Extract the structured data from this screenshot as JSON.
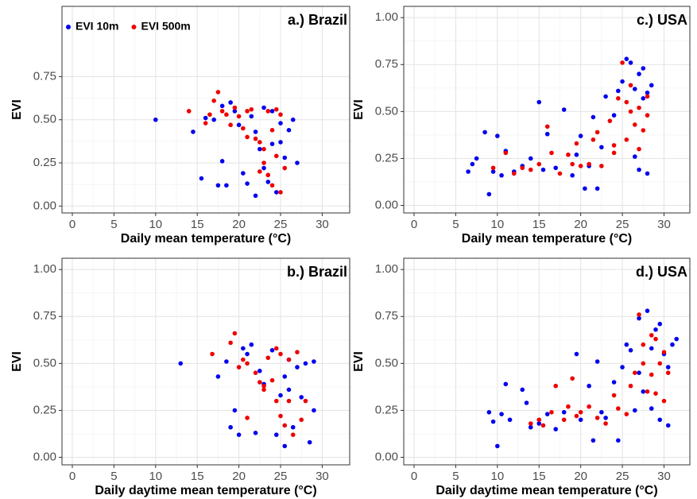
{
  "chart_data": [
    {
      "type": "scatter",
      "title": "a.) Brazil",
      "x_label": "Daily mean temperature (°C)",
      "y_label": "EVI",
      "legend": "top-left",
      "grid": true,
      "xlim": [
        -1.24,
        33.3
      ],
      "ylim": [
        -0.04,
        1.157
      ],
      "xticks": [
        0,
        5,
        10,
        15,
        20,
        25,
        30
      ],
      "yticks": [
        {
          "value": 0,
          "label": "0.00"
        },
        {
          "value": 0.25,
          "label": "0.25"
        },
        {
          "value": 0.5,
          "label": "0.50"
        },
        {
          "value": 0.75,
          "label": "0.75"
        }
      ],
      "series": [
        {
          "name": "EVI 10m",
          "color": "#0000ee",
          "x": [
            10,
            14.5,
            15.5,
            16,
            17,
            17.5,
            18,
            18,
            18.5,
            19,
            19.5,
            20,
            20.5,
            21,
            21.5,
            22,
            22.5,
            23,
            23,
            23.5,
            24,
            24,
            24.5,
            25,
            25.5,
            26,
            26.5,
            27,
            25,
            22
          ],
          "values": [
            0.5,
            0.43,
            0.16,
            0.51,
            0.5,
            0.12,
            0.58,
            0.26,
            0.12,
            0.6,
            0.55,
            0.47,
            0.19,
            0.13,
            0.52,
            0.06,
            0.33,
            0.57,
            0.22,
            0.14,
            0.55,
            0.36,
            0.08,
            0.48,
            0.28,
            0.44,
            0.5,
            0.25,
            0.37,
            0.43
          ]
        },
        {
          "name": "EVI 500m",
          "color": "#ee0000",
          "x": [
            14,
            16,
            16.5,
            17,
            17.5,
            18,
            18.5,
            19,
            19.5,
            20,
            20.5,
            21,
            21.5,
            22,
            22.5,
            23,
            23,
            23.5,
            23.5,
            24,
            24,
            24.5,
            24.5,
            25,
            25,
            25.5,
            21,
            22.5
          ],
          "values": [
            0.55,
            0.48,
            0.53,
            0.61,
            0.66,
            0.55,
            0.53,
            0.47,
            0.57,
            0.52,
            0.45,
            0.4,
            0.56,
            0.39,
            0.37,
            0.33,
            0.25,
            0.18,
            0.55,
            0.44,
            0.12,
            0.29,
            0.56,
            0.08,
            0.53,
            0.22,
            0.55,
            0.2
          ]
        }
      ]
    },
    {
      "type": "scatter",
      "title": "c.) USA",
      "x_label": "Daily mean temperature (°C)",
      "y_label": "EVI",
      "grid": true,
      "xlim": [
        -1.24,
        33.1
      ],
      "ylim": [
        -0.04,
        1.06
      ],
      "xticks": [
        0,
        5,
        10,
        15,
        20,
        25,
        30
      ],
      "yticks": [
        {
          "value": 0,
          "label": "0.00"
        },
        {
          "value": 0.25,
          "label": "0.25"
        },
        {
          "value": 0.5,
          "label": "0.50"
        },
        {
          "value": 0.75,
          "label": "0.75"
        },
        {
          "value": 1,
          "label": "1.00"
        }
      ],
      "series": [
        {
          "color": "#0000ee",
          "x": [
            6.5,
            7,
            7.5,
            8.5,
            9,
            9.5,
            10,
            10.5,
            11,
            12,
            13,
            14,
            15,
            15.5,
            16,
            17,
            18,
            19,
            19.5,
            20,
            20.5,
            21,
            21.5,
            22,
            22.5,
            23,
            24,
            24.5,
            25,
            25.5,
            26,
            26.5,
            26.5,
            27,
            27,
            27.5,
            27.5,
            28,
            28,
            28.5
          ],
          "values": [
            0.18,
            0.22,
            0.25,
            0.39,
            0.06,
            0.18,
            0.37,
            0.16,
            0.29,
            0.18,
            0.21,
            0.25,
            0.55,
            0.19,
            0.38,
            0.2,
            0.51,
            0.16,
            0.27,
            0.37,
            0.09,
            0.21,
            0.47,
            0.09,
            0.31,
            0.58,
            0.48,
            0.61,
            0.66,
            0.78,
            0.76,
            0.62,
            0.26,
            0.7,
            0.19,
            0.73,
            0.57,
            0.6,
            0.17,
            0.64
          ]
        },
        {
          "color": "#ee0000",
          "x": [
            9.5,
            11,
            12,
            13,
            14,
            15,
            16,
            16.5,
            17.5,
            18.5,
            19,
            19.5,
            20,
            21,
            21.5,
            22,
            22.5,
            23.5,
            24,
            24.5,
            25,
            25.5,
            26,
            26,
            26.5,
            27,
            27,
            27.5,
            28,
            28,
            25.5,
            24
          ],
          "values": [
            0.2,
            0.28,
            0.17,
            0.2,
            0.19,
            0.22,
            0.42,
            0.28,
            0.17,
            0.27,
            0.22,
            0.33,
            0.21,
            0.22,
            0.35,
            0.39,
            0.21,
            0.45,
            0.32,
            0.57,
            0.76,
            0.35,
            0.5,
            0.64,
            0.43,
            0.3,
            0.52,
            0.4,
            0.48,
            0.58,
            0.55,
            0.28
          ]
        }
      ]
    },
    {
      "type": "scatter",
      "title": "b.) Brazil",
      "x_label": "Daily daytime mean temperature (°C)",
      "y_label": "EVI",
      "grid": true,
      "xlim": [
        -1.24,
        33.3
      ],
      "ylim": [
        -0.04,
        1.06
      ],
      "xticks": [
        0,
        5,
        10,
        15,
        20,
        25,
        30
      ],
      "yticks": [
        {
          "value": 0,
          "label": "0.00"
        },
        {
          "value": 0.25,
          "label": "0.25"
        },
        {
          "value": 0.5,
          "label": "0.50"
        },
        {
          "value": 0.75,
          "label": "0.75"
        },
        {
          "value": 1,
          "label": "1.00"
        }
      ],
      "series": [
        {
          "color": "#0000ee",
          "x": [
            13,
            17.5,
            18.5,
            19,
            19.5,
            20,
            20.5,
            21,
            21.5,
            22,
            22.5,
            23,
            24,
            24.5,
            25,
            25.5,
            25.5,
            26,
            26.5,
            27,
            27.5,
            28,
            28.5,
            29,
            29,
            26
          ],
          "values": [
            0.5,
            0.43,
            0.51,
            0.16,
            0.25,
            0.12,
            0.58,
            0.55,
            0.6,
            0.13,
            0.46,
            0.39,
            0.57,
            0.12,
            0.33,
            0.06,
            0.43,
            0.52,
            0.16,
            0.48,
            0.32,
            0.5,
            0.08,
            0.25,
            0.51,
            0.36
          ]
        },
        {
          "color": "#ee0000",
          "x": [
            16.8,
            19,
            19.5,
            20,
            20.5,
            21,
            21,
            22,
            22.5,
            23,
            23.5,
            24,
            24.5,
            25,
            25,
            25.5,
            26,
            26,
            26.5,
            27,
            27.5,
            28,
            24.5,
            23
          ],
          "values": [
            0.55,
            0.61,
            0.66,
            0.48,
            0.52,
            0.21,
            0.5,
            0.45,
            0.4,
            0.38,
            0.53,
            0.41,
            0.3,
            0.22,
            0.55,
            0.17,
            0.3,
            0.52,
            0.12,
            0.56,
            0.2,
            0.3,
            0.58,
            0.36
          ]
        }
      ]
    },
    {
      "type": "scatter",
      "title": "d.) USA",
      "x_label": "Daily daytime mean temperature (°C)",
      "y_label": "EVI",
      "grid": true,
      "xlim": [
        -1.24,
        33.1
      ],
      "ylim": [
        -0.04,
        1.06
      ],
      "xticks": [
        0,
        5,
        10,
        15,
        20,
        25,
        30
      ],
      "yticks": [
        {
          "value": 0,
          "label": "0.00"
        },
        {
          "value": 0.25,
          "label": "0.25"
        },
        {
          "value": 0.5,
          "label": "0.50"
        },
        {
          "value": 0.75,
          "label": "0.75"
        },
        {
          "value": 1,
          "label": "1.00"
        }
      ],
      "series": [
        {
          "color": "#0000ee",
          "x": [
            9,
            9.5,
            10,
            10.5,
            11,
            11.5,
            13,
            13.5,
            14,
            15,
            16,
            17,
            18,
            19.5,
            20,
            21,
            21.5,
            22,
            22.5,
            23,
            24,
            24.5,
            25,
            25.5,
            26,
            27,
            27.5,
            28,
            28.5,
            28.5,
            29,
            29.5,
            29.5,
            30,
            30.5,
            30.5,
            31,
            31.5,
            27,
            26.5
          ],
          "values": [
            0.24,
            0.19,
            0.06,
            0.23,
            0.39,
            0.2,
            0.36,
            0.29,
            0.16,
            0.18,
            0.23,
            0.15,
            0.24,
            0.55,
            0.2,
            0.38,
            0.09,
            0.51,
            0.24,
            0.21,
            0.4,
            0.09,
            0.48,
            0.6,
            0.57,
            0.74,
            0.35,
            0.78,
            0.26,
            0.58,
            0.68,
            0.71,
            0.2,
            0.55,
            0.17,
            0.48,
            0.6,
            0.63,
            0.45,
            0.25
          ]
        },
        {
          "color": "#ee0000",
          "x": [
            14,
            15,
            15.5,
            16.5,
            17,
            18,
            18.5,
            19,
            19.5,
            20,
            21,
            22,
            23,
            24,
            24.5,
            25.5,
            26,
            27,
            27.5,
            28,
            28.5,
            28.5,
            29,
            29.5,
            30,
            30,
            29,
            30.5,
            26.5,
            27.5
          ],
          "values": [
            0.18,
            0.2,
            0.17,
            0.24,
            0.38,
            0.2,
            0.27,
            0.42,
            0.22,
            0.24,
            0.27,
            0.21,
            0.18,
            0.33,
            0.26,
            0.23,
            0.38,
            0.76,
            0.5,
            0.35,
            0.65,
            0.44,
            0.34,
            0.5,
            0.56,
            0.3,
            0.63,
            0.45,
            0.45,
            0.6
          ]
        }
      ]
    }
  ]
}
